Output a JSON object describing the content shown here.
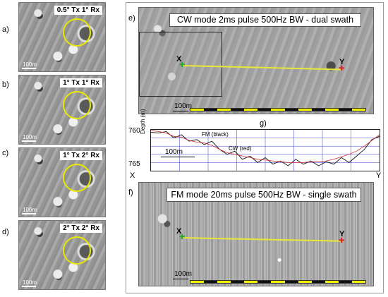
{
  "left_panels": [
    {
      "letter": "a)",
      "label": "0.5° Tx 1° Rx",
      "scale": "100m"
    },
    {
      "letter": "b)",
      "label": "1° Tx 1° Rx",
      "scale": "100m"
    },
    {
      "letter": "c)",
      "label": "1° Tx 2° Rx",
      "scale": "100m"
    },
    {
      "letter": "d)",
      "label": "2° Tx 2° Rx",
      "scale": "100m"
    }
  ],
  "panel_e": {
    "tag": "e)",
    "title": "CW mode 2ms pulse 500Hz BW - dual swath",
    "point_x": "X",
    "point_y": "Y",
    "scale": "100m"
  },
  "panel_g": {
    "tag": "g)",
    "ylabel": "Depth (m)",
    "y_top": "760",
    "y_bottom": "765",
    "legend_fm": "FM (black)",
    "legend_cw": "CW (red)",
    "scale": "100m",
    "x_start": "X",
    "x_end": "Y"
  },
  "panel_f": {
    "tag": "f)",
    "title": "FM mode 20ms pulse 500Hz BW - single swath",
    "point_x": "X",
    "point_y": "Y",
    "scale": "100m"
  },
  "colors": {
    "circle": "#e8e800",
    "track": "#e8e83a",
    "scale_yellow": "#f2f200",
    "fm_line": "#111111",
    "cw_line": "#cc3333",
    "grid": "#3a3ad0"
  },
  "chart_data": {
    "type": "line",
    "ylabel": "Depth (m)",
    "ylim": [
      760,
      765
    ],
    "series": [
      {
        "name": "FM (black)",
        "values": [
          760.3,
          760.4,
          760.2,
          761.0,
          760.6,
          761.4,
          761.2,
          761.8,
          761.4,
          762.4,
          763.0,
          762.6,
          763.6,
          763.2,
          764.0,
          763.4,
          764.2,
          763.8,
          764.4,
          763.6,
          764.2,
          763.8,
          764.4,
          763.9,
          764.2,
          763.4,
          764.0,
          763.2,
          762.4,
          761.2,
          760.8
        ]
      },
      {
        "name": "CW (red)",
        "values": [
          760.1,
          760.2,
          760.4,
          760.8,
          760.9,
          761.3,
          761.5,
          761.6,
          761.9,
          762.4,
          762.8,
          763.0,
          763.2,
          763.4,
          763.6,
          763.7,
          763.8,
          763.9,
          764.0,
          764.0,
          764.0,
          763.9,
          763.9,
          763.8,
          763.6,
          763.3,
          763.0,
          762.6,
          762.0,
          761.3,
          760.6
        ]
      }
    ]
  }
}
